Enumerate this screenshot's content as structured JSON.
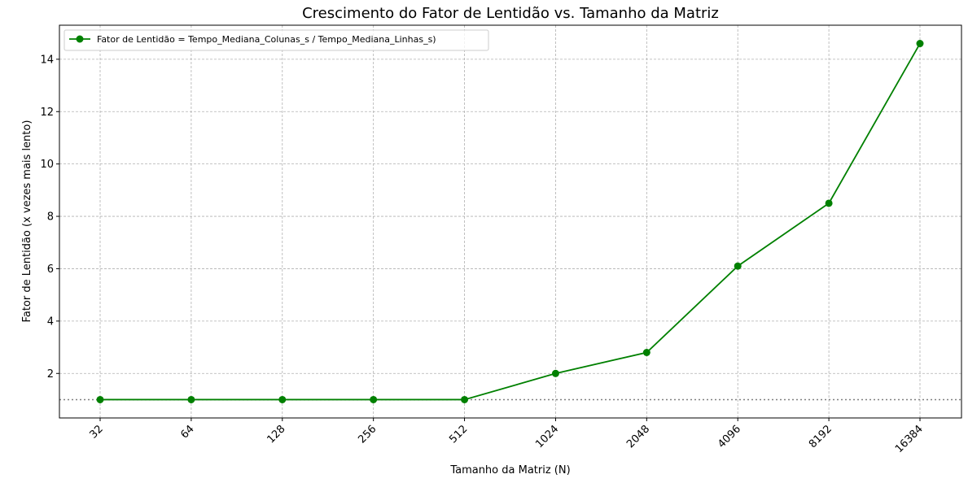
{
  "chart_data": {
    "type": "line",
    "title": "Crescimento do Fator de Lentidão vs. Tamanho da Matriz",
    "xlabel": "Tamanho da Matriz (N)",
    "ylabel": "Fator de Lentidão (x vezes mais lento)",
    "categories": [
      "32",
      "64",
      "128",
      "256",
      "512",
      "1024",
      "2048",
      "4096",
      "8192",
      "16384"
    ],
    "series": [
      {
        "name": "Fator de Lentidão = Tempo_Mediana_Colunas_s / Tempo_Mediana_Linhas_s)",
        "values": [
          1.0,
          1.0,
          1.0,
          1.0,
          1.0,
          2.0,
          2.8,
          6.1,
          8.5,
          14.6
        ],
        "color": "#008000",
        "marker": "circle"
      }
    ],
    "reference_line": {
      "y": 1.0,
      "style": "dotted",
      "color": "#808080"
    },
    "ylim": [
      0.3,
      15.3
    ],
    "yticks": [
      2,
      4,
      6,
      8,
      10,
      12,
      14
    ],
    "grid": true,
    "legend_position": "top-left"
  }
}
